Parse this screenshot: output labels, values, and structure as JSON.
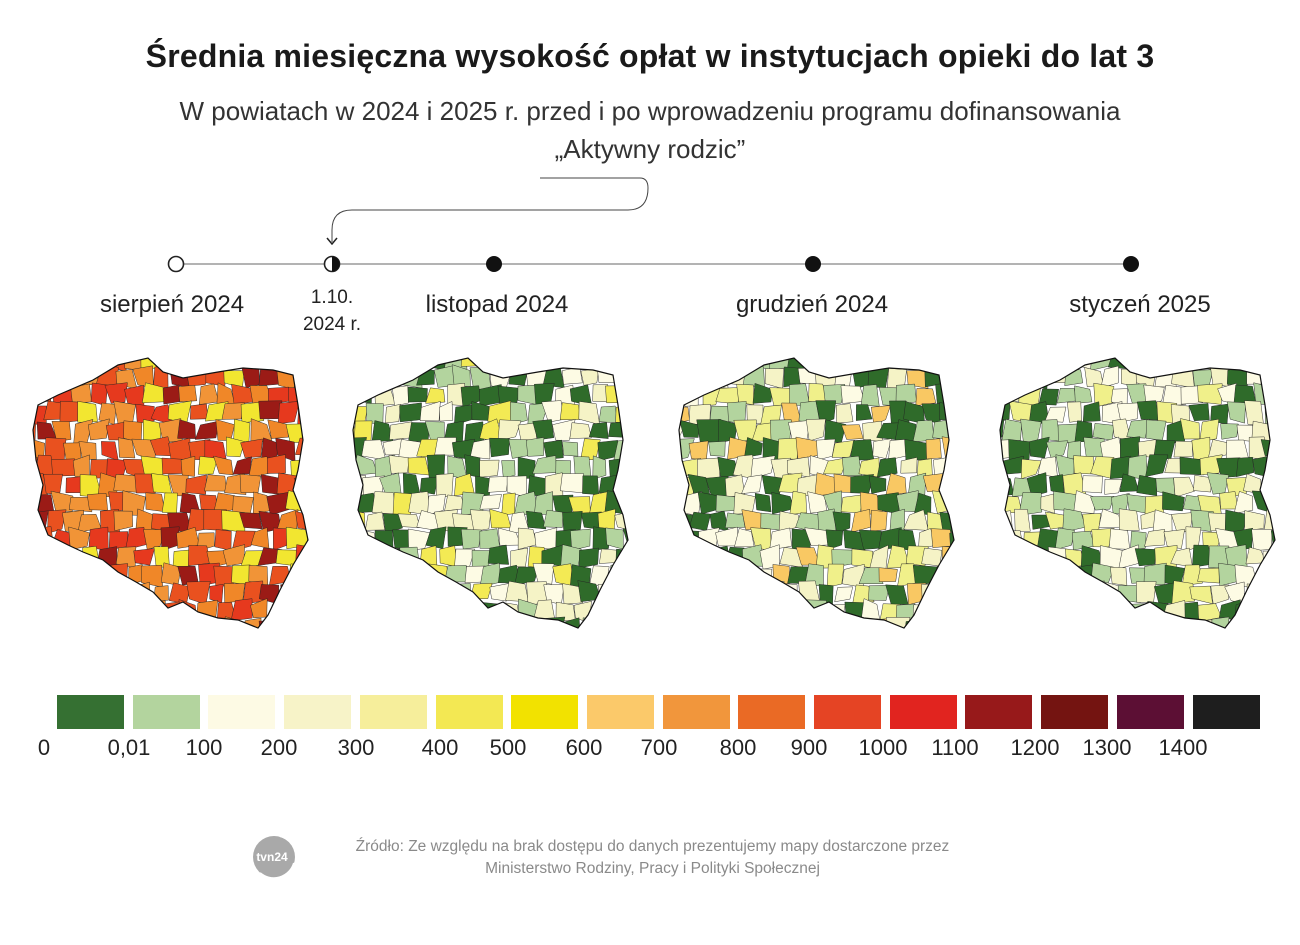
{
  "header": {
    "title": "Średnia miesięczna wysokość opłat w instytucjach opieki do lat 3",
    "subtitle": "W powiatach w 2024 i 2025 r. przed i po wprowadzeniu programu dofinansowania „Aktywny rodzic”"
  },
  "timeline": {
    "points": [
      {
        "label": "sierpień 2024",
        "marker": "open-circle"
      },
      {
        "label": "",
        "marker": "half-circle"
      },
      {
        "label": "listopad 2024",
        "marker": "filled-circle"
      },
      {
        "label": "grudzień 2024",
        "marker": "filled-circle"
      },
      {
        "label": "styczeń 2025",
        "marker": "filled-circle"
      }
    ],
    "program_date_line1": "1.10.",
    "program_date_line2": "2024 r."
  },
  "maps": [
    {
      "name": "sierpień 2024",
      "dominant": [
        "#e9511f",
        "#f19437",
        "#9b1b16",
        "#e6391e",
        "#f2e630",
        "#f08728"
      ]
    },
    {
      "name": "listopad 2024",
      "dominant": [
        "#2f6b2a",
        "#b3d49e",
        "#fdfbe4",
        "#f5f3c6",
        "#f3ea54"
      ]
    },
    {
      "name": "grudzień 2024",
      "dominant": [
        "#2f6b2a",
        "#b3d49e",
        "#fdfbe4",
        "#f5f3c6",
        "#f0f08a",
        "#f9c863"
      ]
    },
    {
      "name": "styczeń 2025",
      "dominant": [
        "#2f6b2a",
        "#b3d49e",
        "#fdfbe4",
        "#f5f3c6",
        "#f0f08a"
      ]
    }
  ],
  "legend": {
    "colors": [
      "#357032",
      "#b3d49e",
      "#fdfae4",
      "#f7f3c8",
      "#f6ee9b",
      "#f3e853",
      "#f2e200",
      "#fbc96a",
      "#f1963c",
      "#ea6a25",
      "#e54424",
      "#e1241f",
      "#97191a",
      "#741411",
      "#5c0f34",
      "#1e1e1e"
    ],
    "ticks": [
      "0",
      "0,01",
      "100",
      "200",
      "300",
      "400",
      "500",
      "600",
      "700",
      "800",
      "900",
      "1000",
      "1100",
      "1200",
      "1300",
      "1400"
    ]
  },
  "source": {
    "line1": "Źródło: Ze względu na brak dostępu do danych prezentujemy mapy dostarczone przez",
    "line2": "Ministerstwo Rodziny, Pracy i Polityki Społecznej"
  },
  "logo": {
    "text": "tvn24"
  }
}
